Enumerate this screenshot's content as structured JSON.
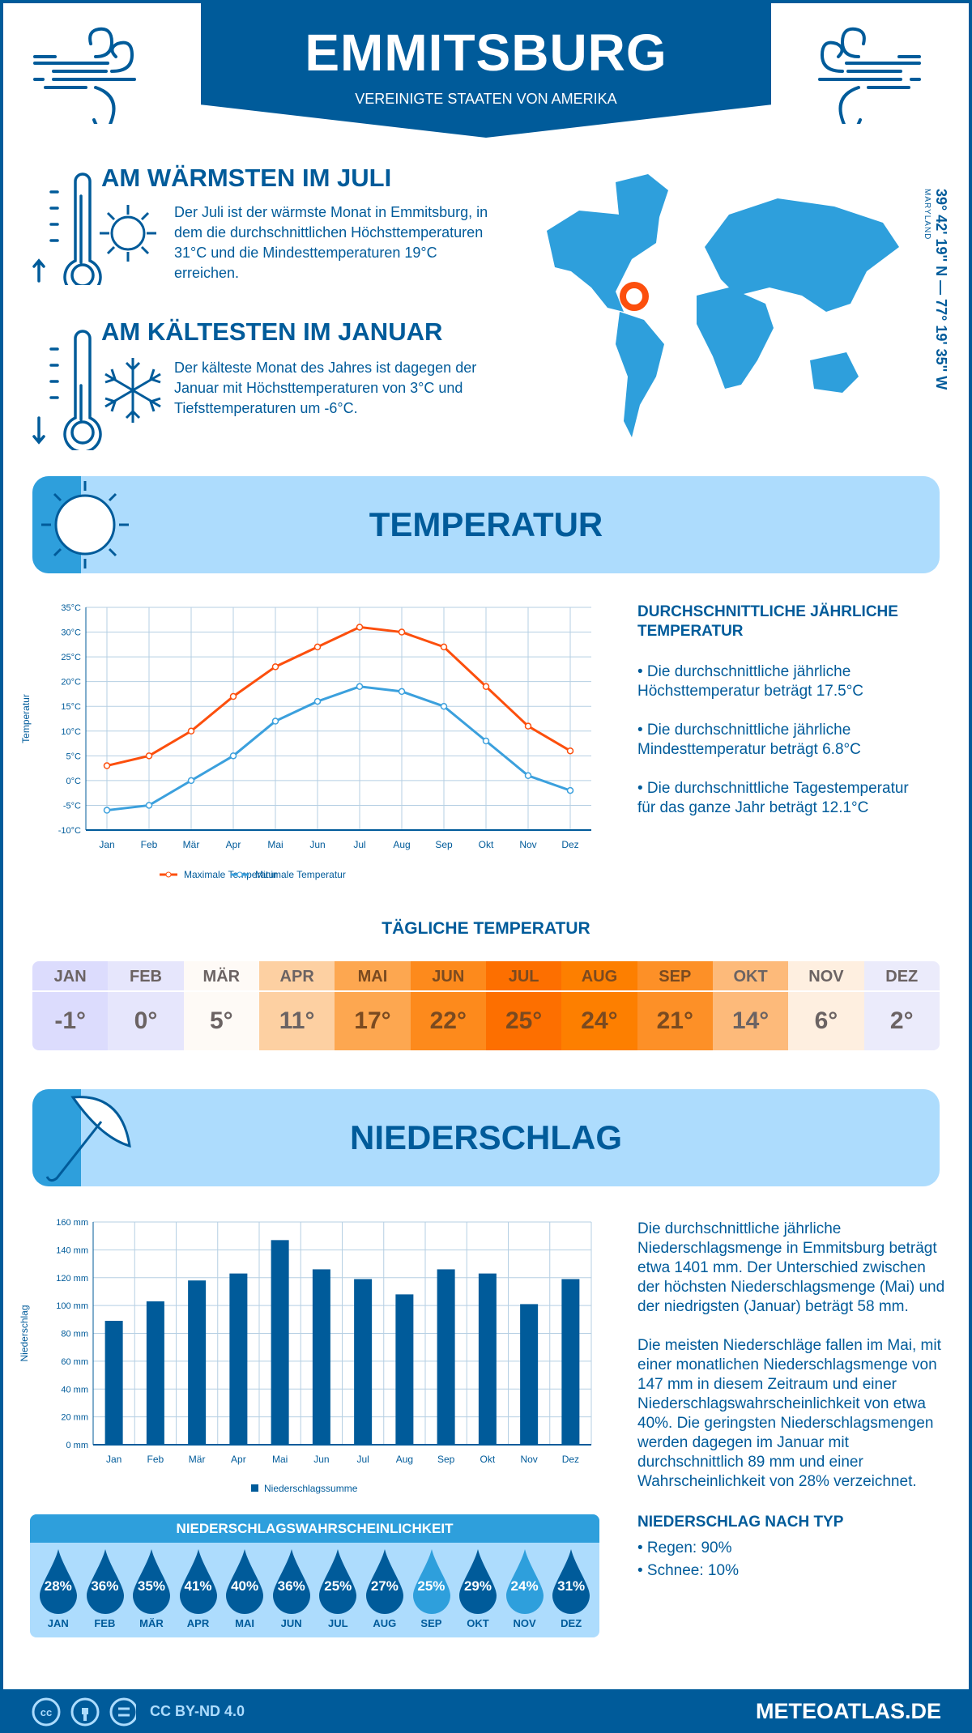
{
  "header": {
    "title": "EMMITSBURG",
    "subtitle": "VEREINIGTE STAATEN VON AMERIKA"
  },
  "warmest": {
    "heading": "AM WÄRMSTEN IM JULI",
    "text": "Der Juli ist der wärmste Monat in Emmitsburg, in dem die durchschnittlichen Höchsttemperaturen 31°C und die Mindesttemperaturen 19°C erreichen."
  },
  "coldest": {
    "heading": "AM KÄLTESTEN IM JANUAR",
    "text": "Der kälteste Monat des Jahres ist dagegen der Januar mit Höchsttemperaturen von 3°C und Tiefsttemperaturen um -6°C."
  },
  "location": {
    "coords": "39° 42' 19'' N — 77° 19' 35'' W",
    "region": "MARYLAND"
  },
  "temperature": {
    "section_title": "TEMPERATUR",
    "summary_heading": "DURCHSCHNITTLICHE JÄHRLICHE TEMPERATUR",
    "bullets": [
      "• Die durchschnittliche jährliche Höchsttemperatur beträgt 17.5°C",
      "• Die durchschnittliche jährliche Mindesttemperatur beträgt 6.8°C",
      "• Die durchschnittliche Tagestemperatur für das ganze Jahr beträgt 12.1°C"
    ],
    "daily_heading": "TÄGLICHE TEMPERATUR",
    "daily": [
      {
        "m": "JAN",
        "v": "-1°",
        "c": "#dcdcfd"
      },
      {
        "m": "FEB",
        "v": "0°",
        "c": "#e6e6fc"
      },
      {
        "m": "MÄR",
        "v": "5°",
        "c": "#fefaf6"
      },
      {
        "m": "APR",
        "v": "11°",
        "c": "#fdd0a2"
      },
      {
        "m": "MAI",
        "v": "17°",
        "c": "#fda750"
      },
      {
        "m": "JUN",
        "v": "22°",
        "c": "#fd8a1c"
      },
      {
        "m": "JUL",
        "v": "25°",
        "c": "#fd6f00"
      },
      {
        "m": "AUG",
        "v": "24°",
        "c": "#fd7f00"
      },
      {
        "m": "SEP",
        "v": "21°",
        "c": "#fd9027"
      },
      {
        "m": "OKT",
        "v": "14°",
        "c": "#fdba7a"
      },
      {
        "m": "NOV",
        "v": "6°",
        "c": "#feefe0"
      },
      {
        "m": "DEZ",
        "v": "2°",
        "c": "#ebebfb"
      }
    ]
  },
  "precipitation": {
    "section_title": "NIEDERSCHLAG",
    "paragraphs": [
      "Die durchschnittliche jährliche Niederschlagsmenge in Emmitsburg beträgt etwa 1401 mm. Der Unterschied zwischen der höchsten Niederschlagsmenge (Mai) und der niedrigsten (Januar) beträgt 58 mm.",
      "Die meisten Niederschläge fallen im Mai, mit einer monatlichen Niederschlagsmenge von 147 mm in diesem Zeitraum und einer Niederschlagswahrscheinlichkeit von etwa 40%. Die geringsten Niederschlagsmengen werden dagegen im Januar mit durchschnittlich 89 mm und einer Wahrscheinlichkeit von 28% verzeichnet."
    ],
    "type_heading": "NIEDERSCHLAG NACH TYP",
    "types": [
      "• Regen: 90%",
      "• Schnee: 10%"
    ],
    "prob_heading": "NIEDERSCHLAGSWAHRSCHEINLICHKEIT",
    "prob": [
      {
        "m": "JAN",
        "p": "28%"
      },
      {
        "m": "FEB",
        "p": "36%"
      },
      {
        "m": "MÄR",
        "p": "35%"
      },
      {
        "m": "APR",
        "p": "41%"
      },
      {
        "m": "MAI",
        "p": "40%"
      },
      {
        "m": "JUN",
        "p": "36%"
      },
      {
        "m": "JUL",
        "p": "25%"
      },
      {
        "m": "AUG",
        "p": "27%"
      },
      {
        "m": "SEP",
        "p": "25%",
        "light": true
      },
      {
        "m": "OKT",
        "p": "29%"
      },
      {
        "m": "NOV",
        "p": "24%",
        "light": true
      },
      {
        "m": "DEZ",
        "p": "31%"
      }
    ]
  },
  "footer": {
    "license": "CC BY-ND 4.0",
    "site": "METEOATLAS.DE"
  },
  "colors": {
    "dark_blue": "#005b9a",
    "light_blue": "#2e9fdc",
    "band": "#addcfd",
    "max": "#fc4f0d",
    "min": "#3ba0dd"
  },
  "chart_data": [
    {
      "type": "line",
      "categories": [
        "Jan",
        "Feb",
        "Mär",
        "Apr",
        "Mai",
        "Jun",
        "Jul",
        "Aug",
        "Sep",
        "Okt",
        "Nov",
        "Dez"
      ],
      "ylabel": "Temperatur",
      "ylim": [
        -10,
        35
      ],
      "yticks": [
        "-10°C",
        "-5°C",
        "0°C",
        "5°C",
        "10°C",
        "15°C",
        "20°C",
        "25°C",
        "30°C",
        "35°C"
      ],
      "grid": true,
      "legend": "bottom",
      "series": [
        {
          "name": "Maximale Temperatur",
          "values": [
            3,
            5,
            10,
            17,
            23,
            27,
            31,
            30,
            27,
            19,
            11,
            6
          ]
        },
        {
          "name": "Minimale Temperatur",
          "values": [
            -6,
            -5,
            0,
            5,
            12,
            16,
            19,
            18,
            15,
            8,
            1,
            -2
          ]
        }
      ]
    },
    {
      "type": "bar",
      "categories": [
        "Jan",
        "Feb",
        "Mär",
        "Apr",
        "Mai",
        "Jun",
        "Jul",
        "Aug",
        "Sep",
        "Okt",
        "Nov",
        "Dez"
      ],
      "ylabel": "Niederschlag",
      "ylim": [
        0,
        160
      ],
      "yticks": [
        "0 mm",
        "20 mm",
        "40 mm",
        "60 mm",
        "80 mm",
        "100 mm",
        "120 mm",
        "140 mm",
        "160 mm"
      ],
      "grid": true,
      "legend": "bottom",
      "series": [
        {
          "name": "Niederschlagssumme",
          "values": [
            89,
            103,
            118,
            123,
            147,
            126,
            119,
            108,
            126,
            123,
            101,
            119
          ]
        }
      ]
    }
  ]
}
